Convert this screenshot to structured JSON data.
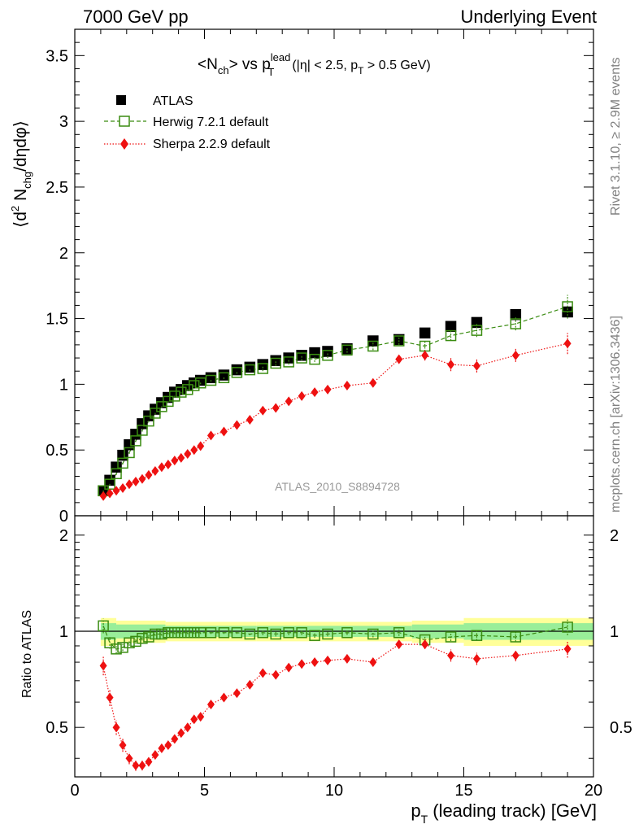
{
  "header": {
    "left": "7000 GeV pp",
    "right": "Underlying Event"
  },
  "side_labels": {
    "rivet": "Rivet 3.1.10, ≥ 2.9M events",
    "mcplots": "mcplots.cern.ch [arXiv:1306.3436]"
  },
  "title": {
    "nch": "<N",
    "nch_sub": "ch",
    "vs": "> vs p",
    "pt_sup": "lead",
    "pt_sub": "T",
    "cuts": "(|η| < 2.5, p",
    "cuts_sub": "T",
    "cuts_end": " > 0.5 GeV)"
  },
  "ylabel_top": {
    "open": "⟨d",
    "sup": "2",
    "n": " N",
    "sub": "chg",
    "rest": "/dηdφ⟩"
  },
  "ylabel_bottom": "Ratio to ATLAS",
  "xlabel": {
    "p": "p",
    "sub": "T",
    "rest": " (leading track) [GeV]"
  },
  "analysis_id": "ATLAS_2010_S8894728",
  "legend": [
    {
      "label": "ATLAS",
      "key": "atlas"
    },
    {
      "label": "Herwig 7.2.1 default",
      "key": "herwig"
    },
    {
      "label": "Sherpa 2.2.9 default",
      "key": "sherpa"
    }
  ],
  "colors": {
    "atlas": "#000000",
    "herwig": "#3a8c11",
    "sherpa": "#ee1111",
    "band_inner": "#99ee99",
    "band_outer": "#ffff99"
  },
  "chart_data": [
    {
      "type": "scatter",
      "panel": "main",
      "xlim": [
        0,
        20
      ],
      "ylim": [
        0,
        3.7
      ],
      "yticks": [
        0,
        0.5,
        1,
        1.5,
        2,
        2.5,
        3,
        3.5
      ],
      "ytick_labels": [
        "0",
        "0.5",
        "1",
        "1.5",
        "2",
        "2.5",
        "3",
        "3.5"
      ],
      "x": [
        1.1,
        1.35,
        1.6,
        1.85,
        2.1,
        2.35,
        2.6,
        2.85,
        3.1,
        3.35,
        3.6,
        3.85,
        4.1,
        4.35,
        4.6,
        4.85,
        5.25,
        5.75,
        6.25,
        6.75,
        7.25,
        7.75,
        8.25,
        8.75,
        9.25,
        9.75,
        10.5,
        11.5,
        12.5,
        13.5,
        14.5,
        15.5,
        17.0,
        19.0
      ],
      "series": [
        {
          "name": "ATLAS",
          "values": [
            0.19,
            0.27,
            0.37,
            0.46,
            0.54,
            0.62,
            0.7,
            0.76,
            0.81,
            0.86,
            0.9,
            0.94,
            0.96,
            0.99,
            1.01,
            1.03,
            1.05,
            1.07,
            1.11,
            1.13,
            1.15,
            1.18,
            1.2,
            1.22,
            1.24,
            1.25,
            1.27,
            1.33,
            1.34,
            1.39,
            1.44,
            1.47,
            1.53,
            1.55
          ]
        },
        {
          "name": "Herwig 7.2.1 default",
          "values": [
            0.19,
            0.24,
            0.32,
            0.4,
            0.48,
            0.57,
            0.65,
            0.72,
            0.78,
            0.83,
            0.87,
            0.91,
            0.94,
            0.96,
            0.99,
            1.01,
            1.03,
            1.05,
            1.09,
            1.11,
            1.12,
            1.16,
            1.17,
            1.2,
            1.19,
            1.22,
            1.26,
            1.29,
            1.33,
            1.29,
            1.37,
            1.41,
            1.46,
            1.59
          ]
        },
        {
          "name": "Sherpa 2.2.9 default",
          "values": [
            0.15,
            0.17,
            0.19,
            0.21,
            0.24,
            0.26,
            0.28,
            0.31,
            0.34,
            0.37,
            0.39,
            0.42,
            0.44,
            0.47,
            0.5,
            0.53,
            0.61,
            0.64,
            0.69,
            0.73,
            0.8,
            0.82,
            0.87,
            0.91,
            0.94,
            0.96,
            0.99,
            1.01,
            1.19,
            1.22,
            1.15,
            1.14,
            1.22,
            1.31
          ]
        }
      ],
      "errors": {
        "Herwig 7.2.1 default": [
          0.01,
          0.01,
          0.01,
          0.01,
          0.01,
          0.01,
          0.01,
          0.01,
          0.01,
          0.01,
          0.01,
          0.01,
          0.01,
          0.01,
          0.01,
          0.01,
          0.01,
          0.01,
          0.01,
          0.01,
          0.02,
          0.02,
          0.02,
          0.02,
          0.02,
          0.02,
          0.02,
          0.03,
          0.03,
          0.04,
          0.04,
          0.05,
          0.05,
          0.09
        ],
        "Sherpa 2.2.9 default": [
          0.01,
          0.01,
          0.01,
          0.01,
          0.01,
          0.01,
          0.01,
          0.01,
          0.01,
          0.01,
          0.01,
          0.01,
          0.01,
          0.01,
          0.01,
          0.01,
          0.01,
          0.01,
          0.01,
          0.01,
          0.02,
          0.02,
          0.02,
          0.02,
          0.02,
          0.02,
          0.02,
          0.03,
          0.03,
          0.04,
          0.05,
          0.05,
          0.05,
          0.08
        ]
      },
      "xlabel": "p_T (leading track) [GeV]",
      "ylabel": "⟨d² N_chg/dηdφ⟩"
    },
    {
      "type": "scatter",
      "panel": "ratio",
      "xlim": [
        0,
        20
      ],
      "ylim": [
        0.35,
        2.3
      ],
      "log_y": true,
      "yticks": [
        0.5,
        1,
        2
      ],
      "ytick_labels": [
        "0.5",
        "1",
        "2"
      ],
      "xticks": [
        0,
        5,
        10,
        15,
        20
      ],
      "xtick_labels": [
        "0",
        "5",
        "10",
        "15",
        "20"
      ],
      "x": [
        1.1,
        1.35,
        1.6,
        1.85,
        2.1,
        2.35,
        2.6,
        2.85,
        3.1,
        3.35,
        3.6,
        3.85,
        4.1,
        4.35,
        4.6,
        4.85,
        5.25,
        5.75,
        6.25,
        6.75,
        7.25,
        7.75,
        8.25,
        8.75,
        9.25,
        9.75,
        10.5,
        11.5,
        12.5,
        13.5,
        14.5,
        15.5,
        17.0,
        19.0
      ],
      "series": [
        {
          "name": "Herwig 7.2.1 default",
          "values": [
            1.04,
            0.92,
            0.88,
            0.89,
            0.92,
            0.93,
            0.95,
            0.96,
            0.98,
            0.98,
            0.99,
            0.99,
            0.99,
            0.99,
            0.99,
            0.99,
            0.99,
            0.99,
            0.99,
            0.98,
            0.99,
            0.98,
            0.99,
            0.99,
            0.97,
            0.98,
            0.99,
            0.98,
            0.99,
            0.94,
            0.96,
            0.97,
            0.96,
            1.03
          ]
        },
        {
          "name": "Sherpa 2.2.9 default",
          "values": [
            0.78,
            0.62,
            0.5,
            0.44,
            0.4,
            0.38,
            0.38,
            0.39,
            0.41,
            0.43,
            0.44,
            0.46,
            0.48,
            0.5,
            0.53,
            0.54,
            0.59,
            0.62,
            0.64,
            0.68,
            0.74,
            0.73,
            0.77,
            0.79,
            0.8,
            0.81,
            0.82,
            0.8,
            0.91,
            0.91,
            0.84,
            0.82,
            0.84,
            0.88
          ]
        }
      ],
      "band_edges": [
        1.0,
        1.6,
        3.5,
        5.0,
        7.0,
        10.0,
        13.0,
        15.0,
        20.0
      ],
      "band_inner": [
        0.06,
        0.05,
        0.04,
        0.04,
        0.04,
        0.04,
        0.05,
        0.06
      ],
      "band_outer": [
        0.1,
        0.08,
        0.07,
        0.07,
        0.07,
        0.07,
        0.08,
        0.1
      ],
      "ylabel": "Ratio to ATLAS"
    }
  ]
}
